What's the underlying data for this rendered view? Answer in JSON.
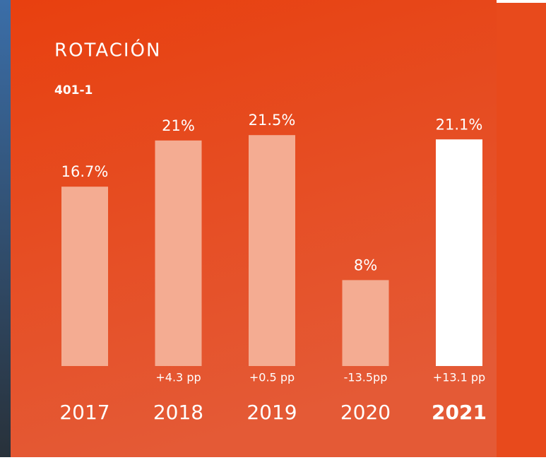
{
  "chart_data": {
    "type": "bar",
    "title": "ROTACIÓN",
    "subtitle": "401-1",
    "categories": [
      "2017",
      "2018",
      "2019",
      "2020",
      "2021"
    ],
    "values": [
      16.7,
      21,
      21.5,
      8,
      21.1
    ],
    "value_labels": [
      "16.7%",
      "21%",
      "21.5%",
      "8%",
      "21.1%"
    ],
    "changes": [
      null,
      "+4.3 pp",
      "+0.5 pp",
      "-13.5pp",
      "+13.1 pp"
    ],
    "color": "#f4ac92",
    "highlight": "2021",
    "highlight_color": "#ffffff"
  }
}
